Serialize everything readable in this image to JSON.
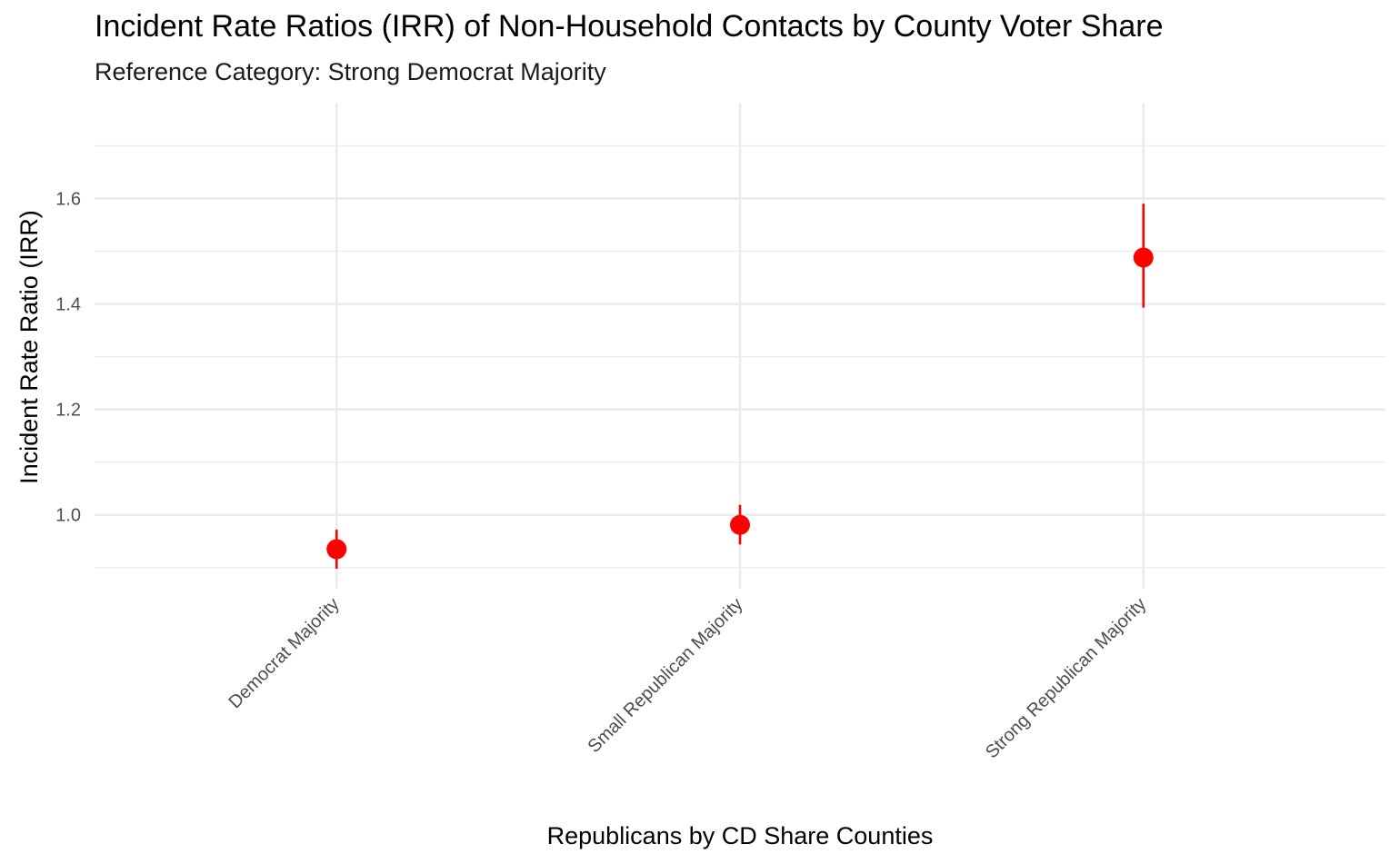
{
  "chart_data": {
    "type": "scatter",
    "title": "Incident Rate Ratios (IRR) of Non-Household Contacts by County Voter Share",
    "subtitle": "Reference Category: Strong Democrat Majority",
    "xlabel": "Republicans by CD Share Counties",
    "ylabel": "Incident Rate Ratio (IRR)",
    "categories": [
      "Democrat Majority",
      "Small Republican Majority",
      "Strong Republican Majority"
    ],
    "values": [
      0.935,
      0.981,
      1.488
    ],
    "ci_lower": [
      0.898,
      0.944,
      1.393
    ],
    "ci_upper": [
      0.972,
      1.019,
      1.59
    ],
    "ylim": [
      0.86,
      1.78
    ],
    "yticks": [
      1.0,
      1.2,
      1.4,
      1.6
    ],
    "ytick_labels": [
      "1.0",
      "1.2",
      "1.4",
      "1.6"
    ],
    "grid": true,
    "point_color": "#ff0000",
    "grid_color": "#ebebeb"
  }
}
